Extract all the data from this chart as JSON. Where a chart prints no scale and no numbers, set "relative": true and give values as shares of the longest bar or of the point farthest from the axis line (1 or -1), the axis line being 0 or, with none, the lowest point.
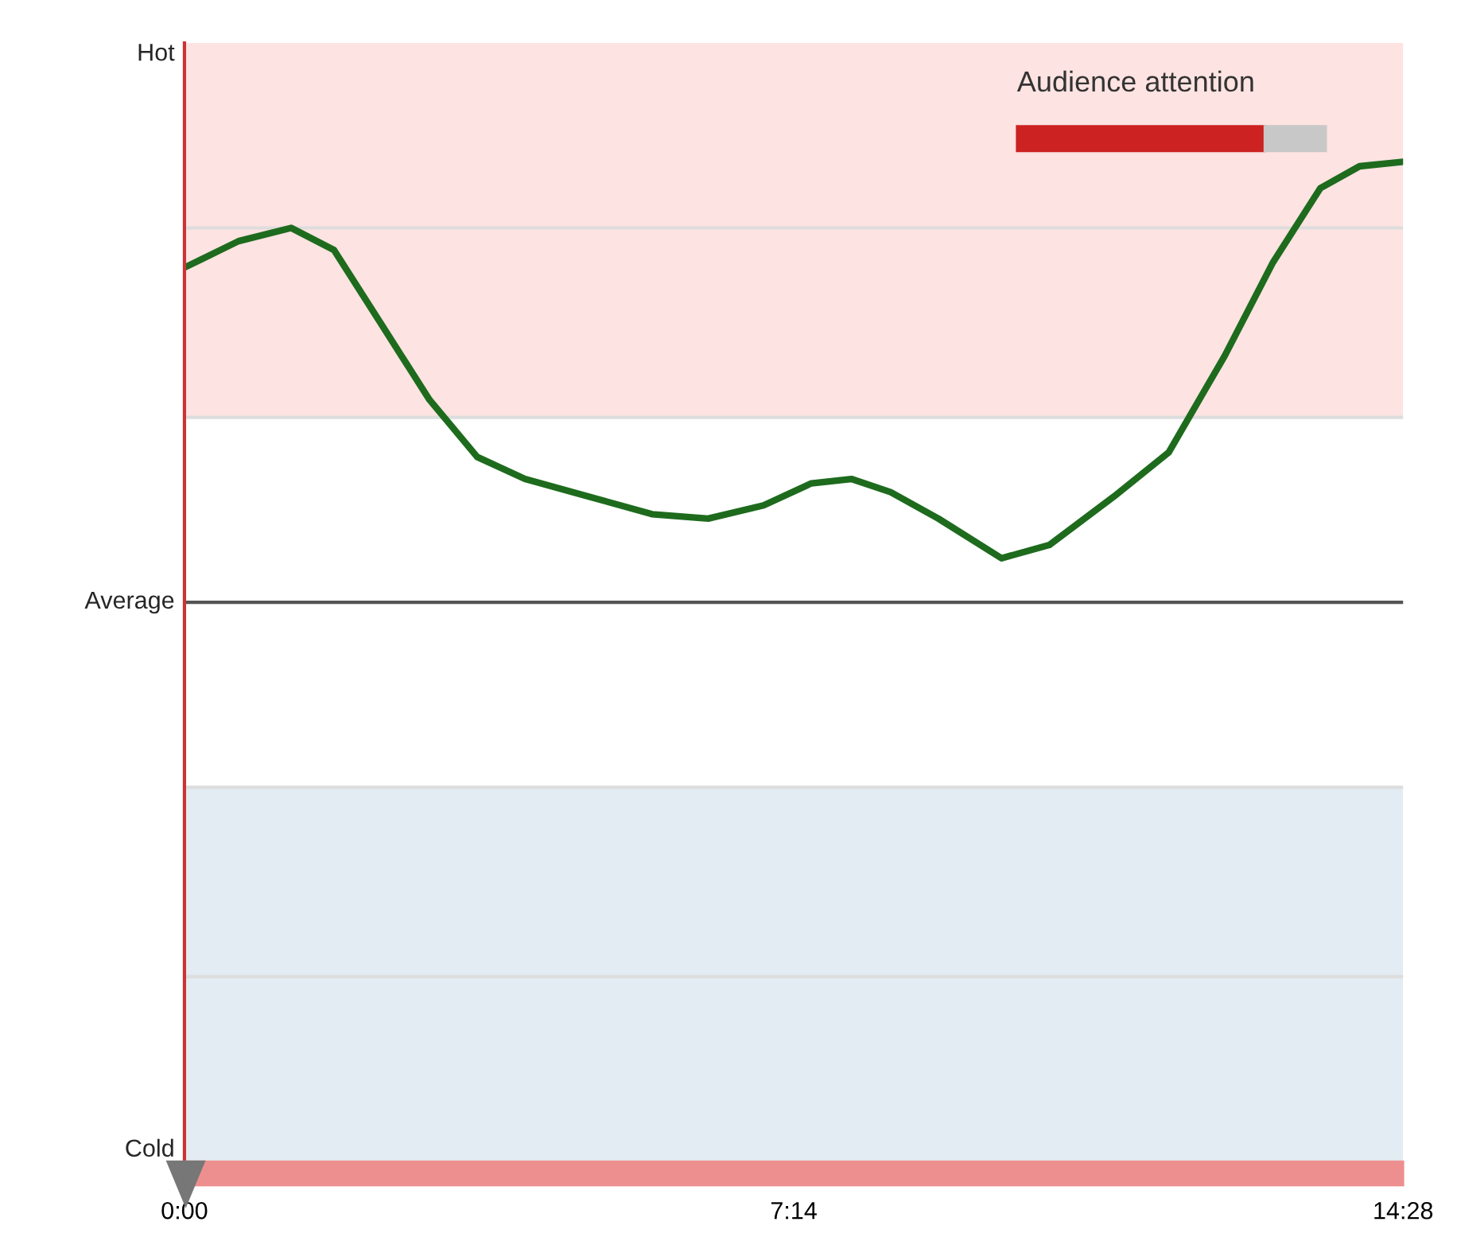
{
  "chart_data": {
    "type": "line",
    "relative": true,
    "annotations": [
      "Audience attention",
      "Hot",
      "Average",
      "Cold"
    ],
    "x": [
      0,
      38.5,
      76,
      106.5,
      140.5,
      174.5,
      208.5,
      242.5,
      288,
      333,
      373,
      412.5,
      446.5,
      475,
      503,
      537,
      582,
      616,
      662,
      701,
      741,
      775,
      809,
      837,
      868
    ],
    "series": [
      {
        "color": "#1e6b1e",
        "values": [
          0.76,
          0.82,
          0.85,
          0.8,
          0.63,
          0.46,
          0.33,
          0.28,
          0.24,
          0.2,
          0.19,
          0.22,
          0.27,
          0.28,
          0.25,
          0.19,
          0.1,
          0.13,
          0.24,
          0.34,
          0.56,
          0.77,
          0.94,
          0.99,
          1
        ]
      }
    ],
    "xlim": [
      0,
      868
    ],
    "xticks": [
      {
        "value": 0,
        "label": "0:00"
      },
      {
        "value": 434,
        "label": "7:14"
      },
      {
        "value": 868,
        "label": "14:28"
      }
    ],
    "line_style": "solid",
    "marker": "none",
    "bands": [
      {
        "axis": "y",
        "from": 0.42,
        "to": 1.27,
        "color": "#fde3e1"
      },
      {
        "axis": "y",
        "from": -1.27,
        "to": -0.42,
        "color": "#e3ecf2"
      }
    ],
    "ref_lines": [
      {
        "axis": "y",
        "value": 0,
        "color": "#555555"
      },
      {
        "axis": "y",
        "value": 0.42,
        "color": "#dddddd"
      },
      {
        "axis": "y",
        "value": 0.85,
        "color": "#dddddd"
      },
      {
        "axis": "y",
        "value": -0.42,
        "color": "#dddddd"
      },
      {
        "axis": "y",
        "value": -0.85,
        "color": "#dddddd"
      }
    ]
  }
}
